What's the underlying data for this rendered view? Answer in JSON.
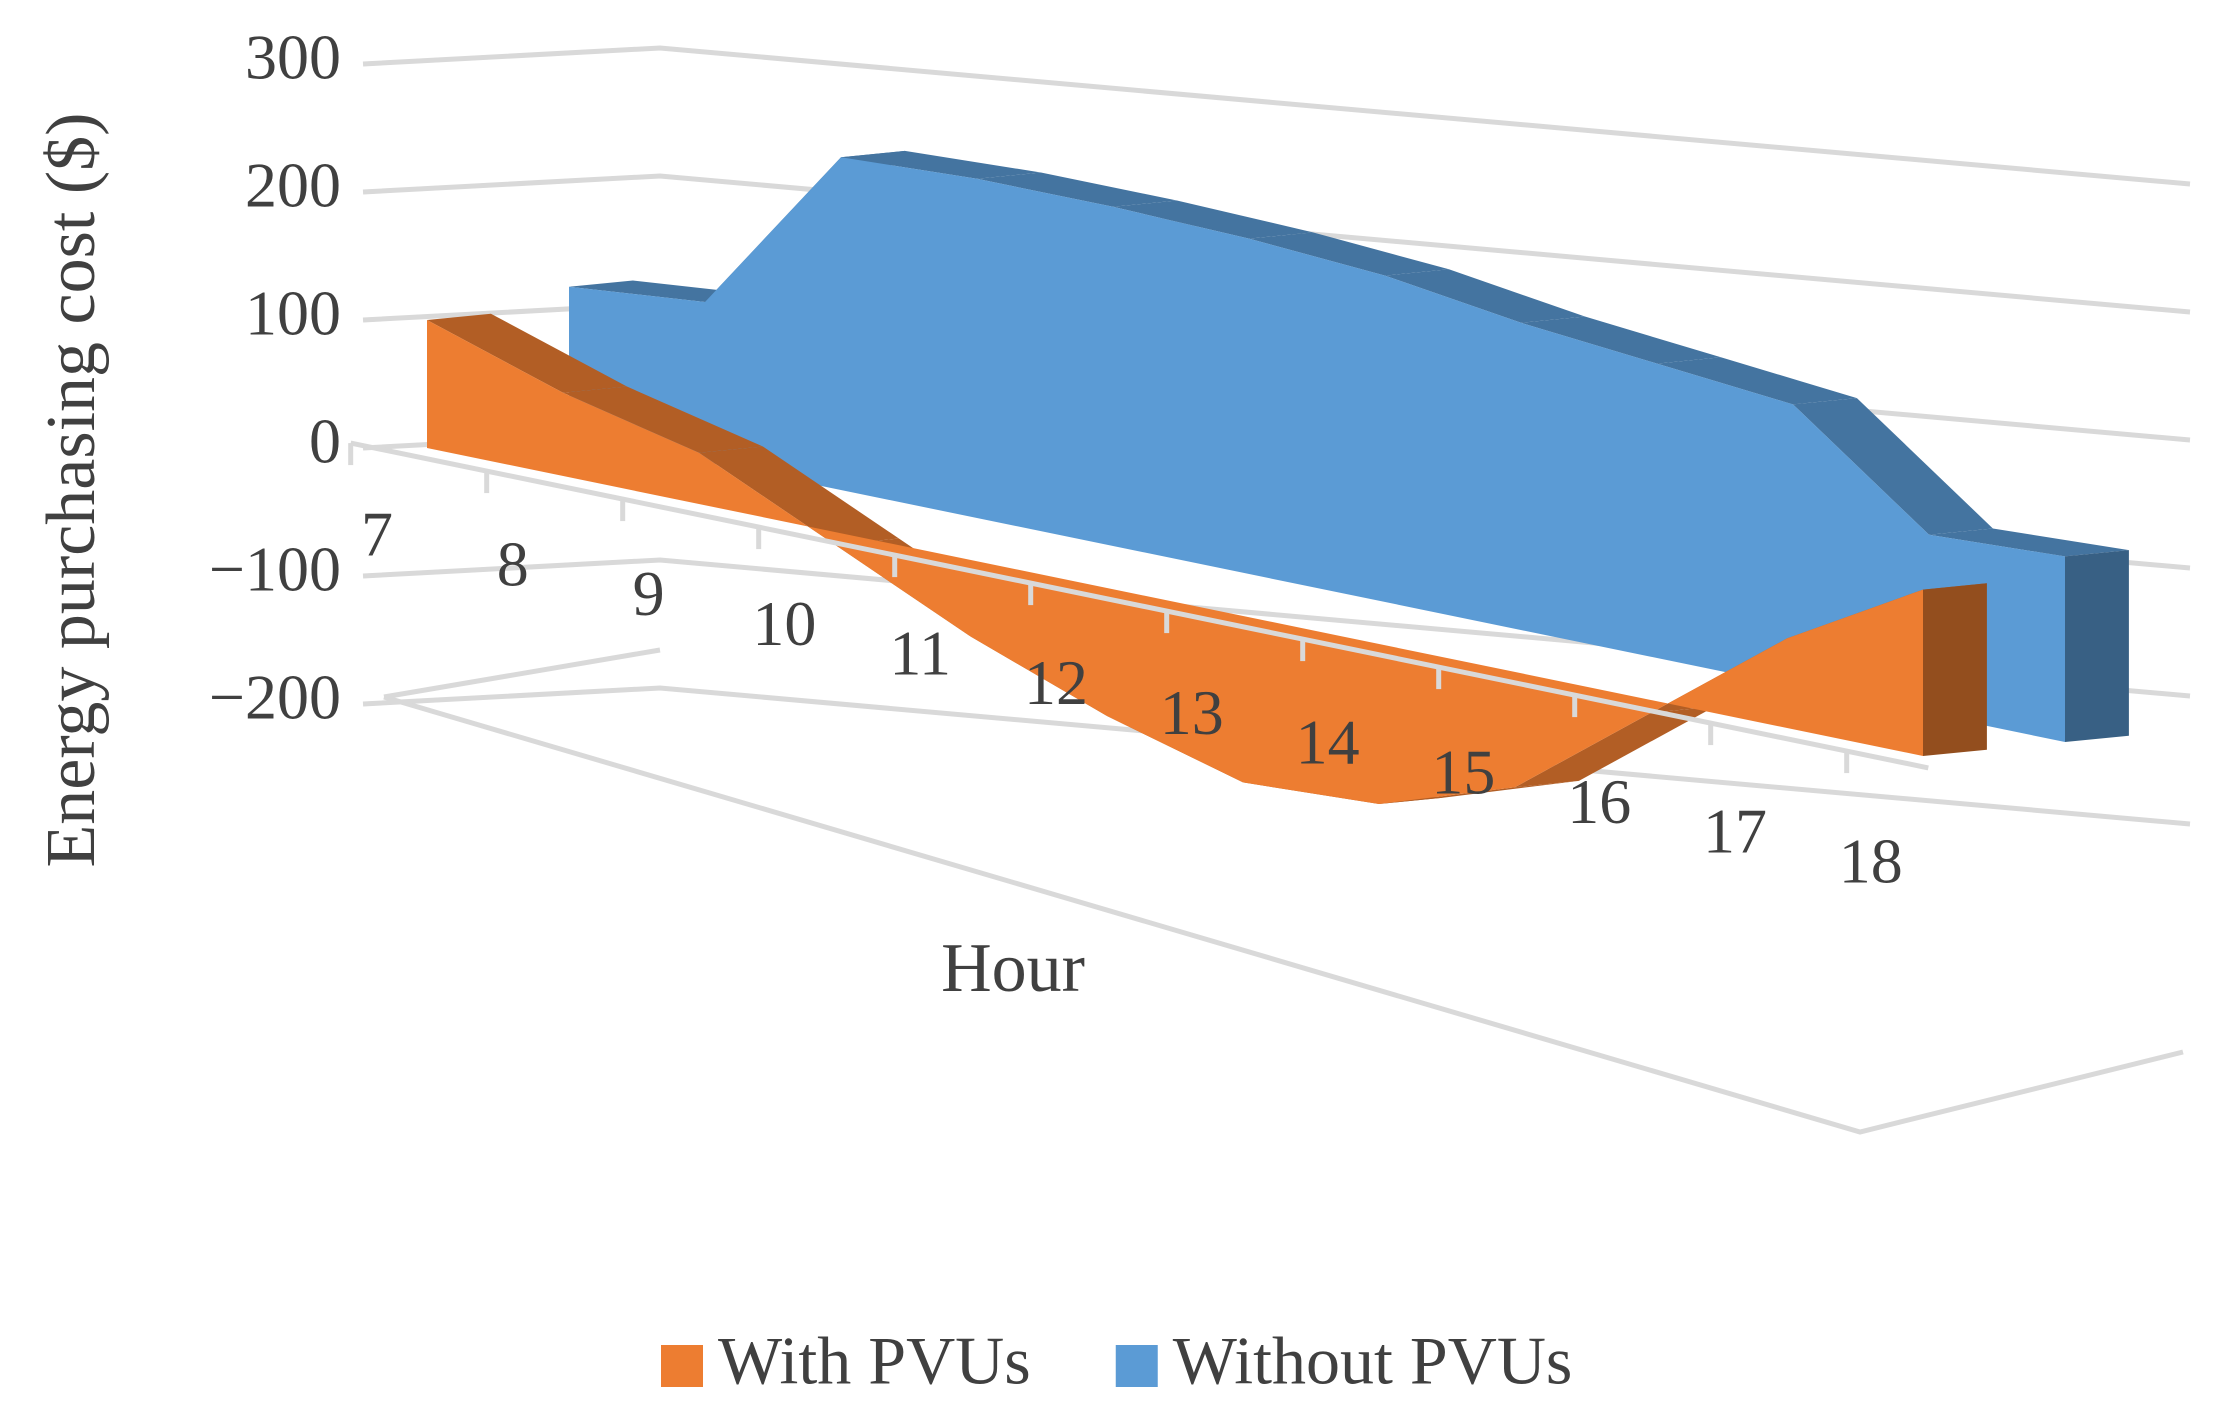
{
  "chart_data": {
    "type": "area",
    "y_label": "Energy purchasing cost ($)",
    "x_label": "Hour",
    "categories": [
      "7",
      "8",
      "9",
      "10",
      "11",
      "12",
      "13",
      "14",
      "15",
      "16",
      "17",
      "18"
    ],
    "series": [
      {
        "name": "With PVUs",
        "color": "#ED7D31",
        "values": [
          100,
          65,
          40,
          -10,
          -60,
          -100,
          -130,
          -125,
          -90,
          -10,
          70,
          130
        ]
      },
      {
        "name": "Without PVUs",
        "color": "#5B9BD5",
        "values": [
          115,
          125,
          260,
          265,
          265,
          262,
          255,
          240,
          230,
          220,
          140,
          145
        ]
      }
    ],
    "ylim": [
      -200,
      300
    ],
    "yticks": [
      {
        "value": -200,
        "label": "−200"
      },
      {
        "value": -100,
        "label": "−100"
      },
      0,
      100,
      200,
      300
    ],
    "grid": true,
    "legend": "bottom"
  }
}
